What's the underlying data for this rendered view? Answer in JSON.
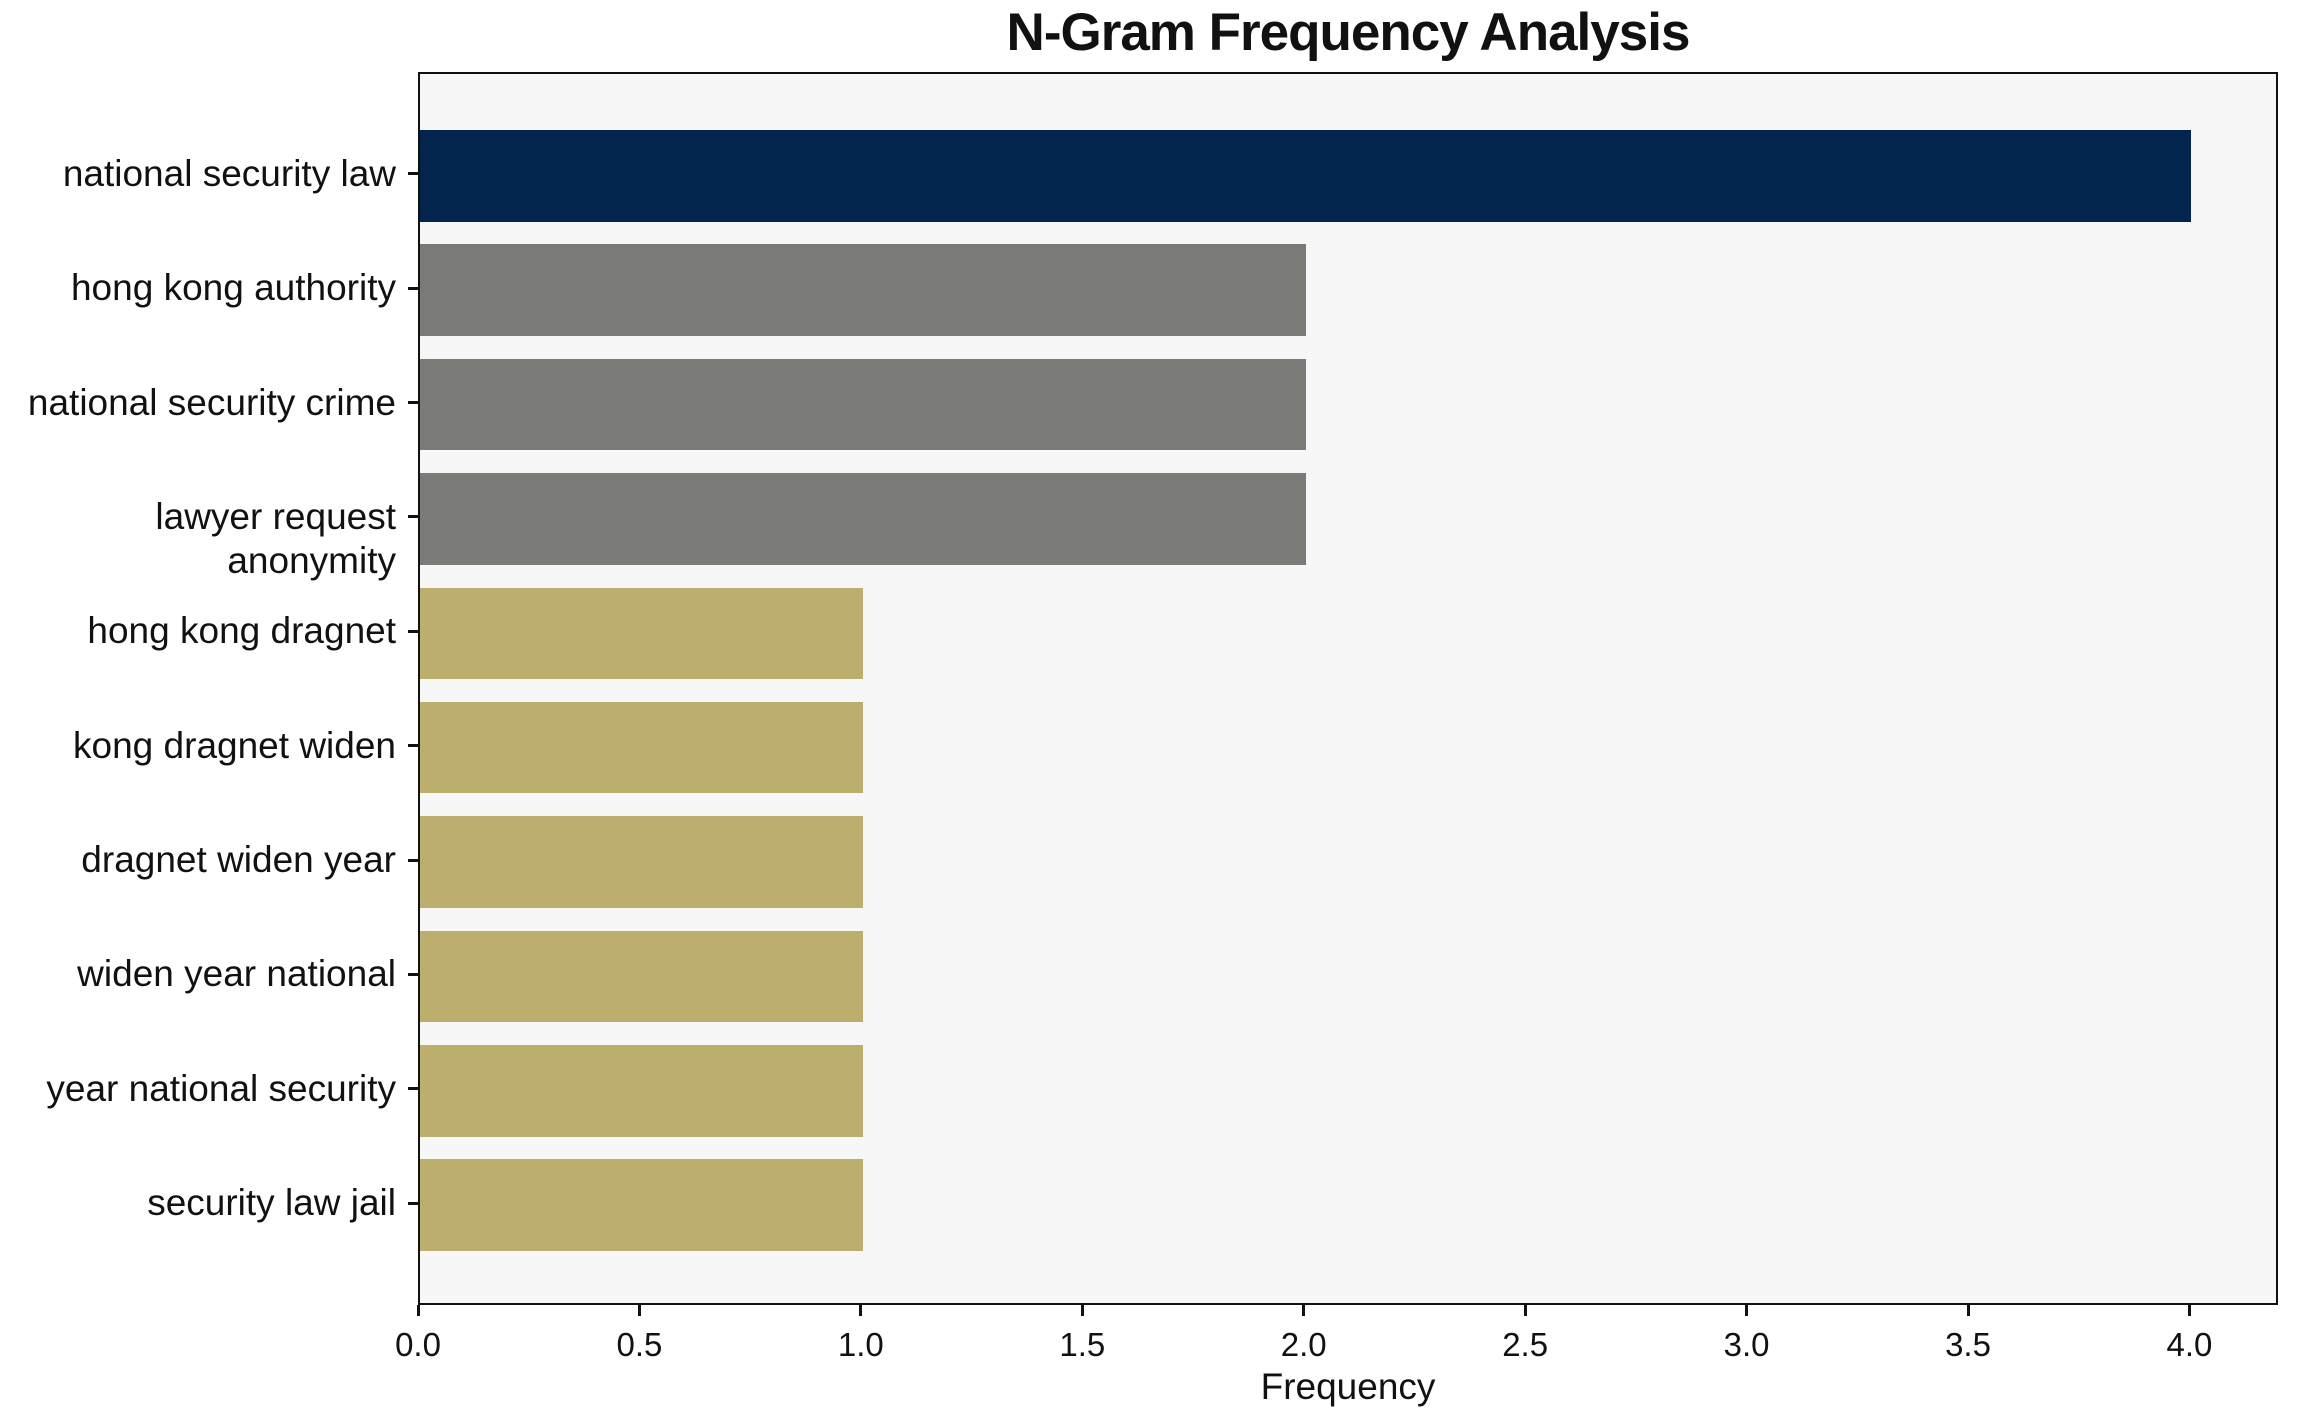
{
  "chart_data": {
    "type": "bar",
    "orientation": "horizontal",
    "title": "N-Gram Frequency Analysis",
    "xlabel": "Frequency",
    "ylabel": "",
    "categories": [
      "national security law",
      "hong kong authority",
      "national security crime",
      "lawyer request anonymity",
      "hong kong dragnet",
      "kong dragnet widen",
      "dragnet widen year",
      "widen year national",
      "year national security",
      "security law jail"
    ],
    "values": [
      4,
      2,
      2,
      2,
      1,
      1,
      1,
      1,
      1,
      1
    ],
    "bar_colors": [
      "#02244d",
      "#7a7a77",
      "#7a7a77",
      "#7a7a77",
      "#bcae6c",
      "#bcae6c",
      "#bcae6c",
      "#bcae6c",
      "#bcae6c",
      "#bcae6c"
    ],
    "palette": {
      "navy": "#02244d",
      "gray": "#7a7a77",
      "dark_khaki": "#bcae6c",
      "plot_background": "#f7f7f7",
      "figure_background": "#ffffff",
      "axis_line": "#111111",
      "text": "#111111"
    },
    "xlim": [
      0,
      4.2
    ],
    "xticks": [
      0.0,
      0.5,
      1.0,
      1.5,
      2.0,
      2.5,
      3.0,
      3.5,
      4.0
    ],
    "xtick_labels": [
      "0.0",
      "0.5",
      "1.0",
      "1.5",
      "2.0",
      "2.5",
      "3.0",
      "3.5",
      "4.0"
    ],
    "grid": false,
    "legend": "none"
  }
}
